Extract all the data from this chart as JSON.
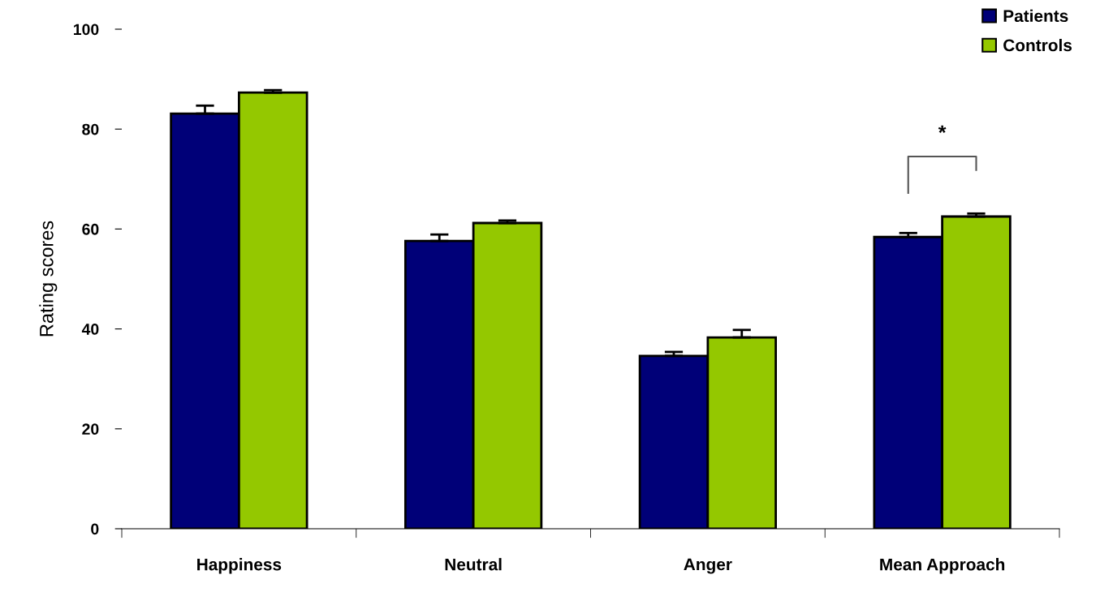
{
  "chart_data": {
    "type": "bar",
    "ylabel": "Rating scores",
    "categories": [
      "Happiness",
      "Neutral",
      "Anger",
      "Mean Approach"
    ],
    "series": [
      {
        "name": "Patients",
        "color": "#000078",
        "values": [
          83.1,
          57.6,
          34.6,
          58.4
        ],
        "errors": [
          1.6,
          1.3,
          0.8,
          0.8
        ]
      },
      {
        "name": "Controls",
        "color": "#94c800",
        "values": [
          87.3,
          61.2,
          38.3,
          62.5
        ],
        "errors": [
          0.5,
          0.5,
          1.5,
          0.6
        ]
      }
    ],
    "ylim": [
      0,
      100
    ],
    "yticks": [
      0,
      20,
      40,
      60,
      80,
      100
    ],
    "annotations": [
      "*"
    ],
    "legend": "top right",
    "grid": false
  }
}
